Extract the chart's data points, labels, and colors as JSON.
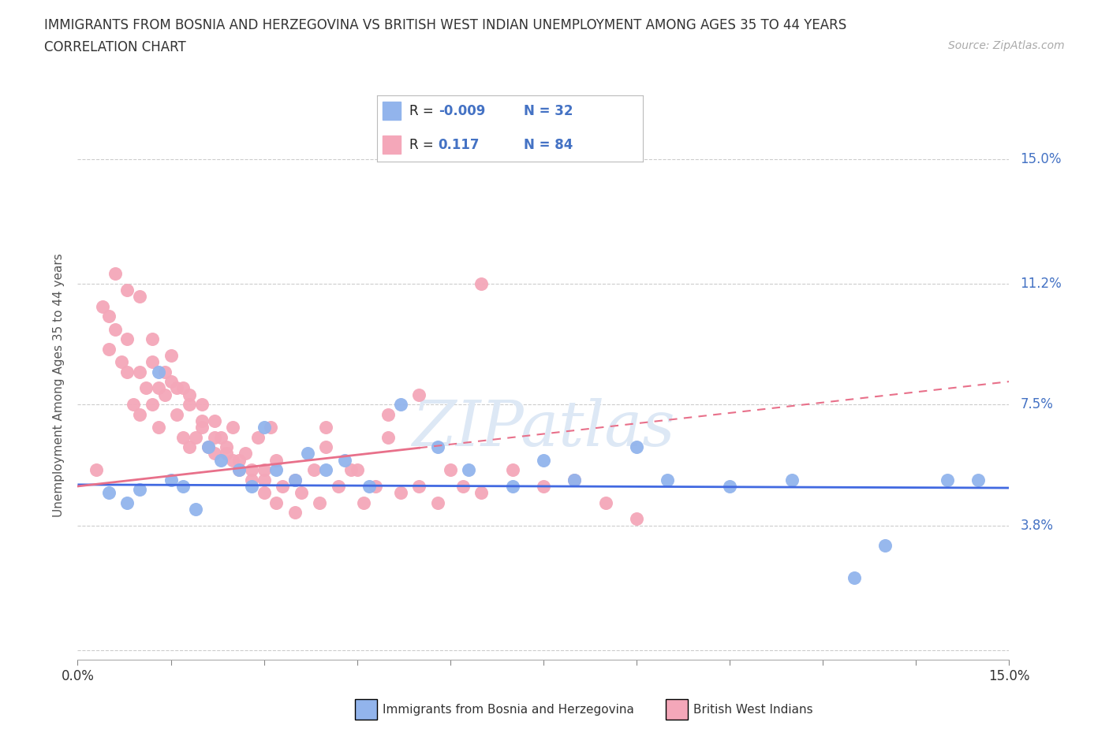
{
  "title": "IMMIGRANTS FROM BOSNIA AND HERZEGOVINA VS BRITISH WEST INDIAN UNEMPLOYMENT AMONG AGES 35 TO 44 YEARS",
  "subtitle": "CORRELATION CHART",
  "source": "Source: ZipAtlas.com",
  "ylabel": "Unemployment Among Ages 35 to 44 years",
  "xlim": [
    0.0,
    15.0
  ],
  "ylim": [
    -0.5,
    16.5
  ],
  "y_tick_values": [
    0.0,
    3.8,
    7.5,
    11.2,
    15.0
  ],
  "y_tick_labels": [
    "",
    "3.8%",
    "7.5%",
    "11.2%",
    "15.0%"
  ],
  "legend_labels": [
    "Immigrants from Bosnia and Herzegovina",
    "British West Indians"
  ],
  "blue_color": "#92B4EC",
  "pink_color": "#F4A7B9",
  "blue_line_color": "#4169E1",
  "pink_line_color": "#E8708A",
  "R_blue": -0.009,
  "N_blue": 32,
  "R_pink": 0.117,
  "N_pink": 84,
  "watermark": "ZIPatlas",
  "blue_line_y0": 5.05,
  "blue_line_y1": 4.95,
  "pink_line_y0": 5.0,
  "pink_line_y1": 8.2,
  "blue_scatter_x": [
    0.5,
    0.8,
    1.0,
    1.3,
    1.5,
    1.7,
    1.9,
    2.1,
    2.3,
    2.6,
    2.8,
    3.0,
    3.2,
    3.5,
    3.7,
    4.0,
    4.3,
    4.7,
    5.2,
    5.8,
    6.3,
    7.0,
    7.5,
    8.0,
    9.0,
    9.5,
    10.5,
    11.5,
    12.5,
    13.0,
    14.0,
    14.5
  ],
  "blue_scatter_y": [
    4.8,
    4.5,
    4.9,
    8.5,
    5.2,
    5.0,
    4.3,
    6.2,
    5.8,
    5.5,
    5.0,
    6.8,
    5.5,
    5.2,
    6.0,
    5.5,
    5.8,
    5.0,
    7.5,
    6.2,
    5.5,
    5.0,
    5.8,
    5.2,
    6.2,
    5.2,
    5.0,
    5.2,
    2.2,
    3.2,
    5.2,
    5.2
  ],
  "pink_scatter_x": [
    0.3,
    0.4,
    0.5,
    0.5,
    0.6,
    0.7,
    0.8,
    0.8,
    0.9,
    1.0,
    1.0,
    1.1,
    1.2,
    1.2,
    1.3,
    1.3,
    1.4,
    1.5,
    1.5,
    1.6,
    1.7,
    1.7,
    1.8,
    1.8,
    1.9,
    2.0,
    2.0,
    2.1,
    2.2,
    2.2,
    2.3,
    2.4,
    2.5,
    2.5,
    2.6,
    2.7,
    2.8,
    2.9,
    3.0,
    3.0,
    3.1,
    3.2,
    3.3,
    3.5,
    3.6,
    3.8,
    3.9,
    4.0,
    4.2,
    4.4,
    4.6,
    4.8,
    5.0,
    5.2,
    5.5,
    5.8,
    6.0,
    6.2,
    6.5,
    7.0,
    7.5,
    8.0,
    8.5,
    9.0,
    0.6,
    0.8,
    1.0,
    1.2,
    1.4,
    1.6,
    1.8,
    2.0,
    2.2,
    2.4,
    2.6,
    2.8,
    3.0,
    3.2,
    3.5,
    4.0,
    4.5,
    5.0,
    5.5,
    6.5
  ],
  "pink_scatter_y": [
    5.5,
    10.5,
    10.2,
    9.2,
    9.8,
    8.8,
    9.5,
    8.5,
    7.5,
    8.5,
    7.2,
    8.0,
    8.8,
    7.5,
    8.0,
    6.8,
    7.8,
    9.0,
    8.2,
    7.2,
    8.0,
    6.5,
    6.2,
    7.8,
    6.5,
    7.5,
    6.8,
    6.2,
    7.0,
    6.0,
    6.5,
    6.2,
    6.8,
    5.8,
    5.5,
    6.0,
    5.5,
    6.5,
    5.5,
    5.2,
    6.8,
    5.8,
    5.0,
    5.2,
    4.8,
    5.5,
    4.5,
    6.2,
    5.0,
    5.5,
    4.5,
    5.0,
    6.5,
    4.8,
    5.0,
    4.5,
    5.5,
    5.0,
    4.8,
    5.5,
    5.0,
    5.2,
    4.5,
    4.0,
    11.5,
    11.0,
    10.8,
    9.5,
    8.5,
    8.0,
    7.5,
    7.0,
    6.5,
    6.0,
    5.8,
    5.2,
    4.8,
    4.5,
    4.2,
    6.8,
    5.5,
    7.2,
    7.8,
    11.2
  ]
}
